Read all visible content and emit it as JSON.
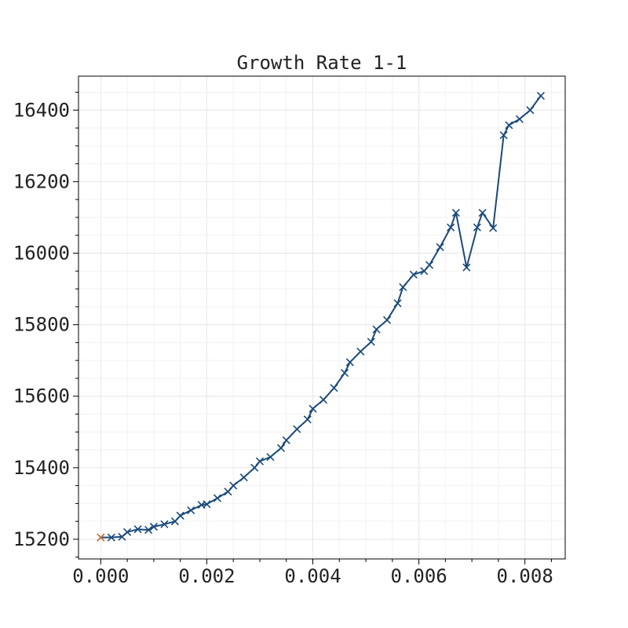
{
  "chart_data": {
    "type": "line",
    "title": "Growth Rate 1-1",
    "xlabel": "",
    "ylabel": "",
    "xlim": [
      -0.00042,
      0.00876
    ],
    "ylim": [
      15145,
      16495
    ],
    "xticks": [
      0.0,
      0.002,
      0.004,
      0.006,
      0.008
    ],
    "xtick_labels": [
      "0.000",
      "0.002",
      "0.004",
      "0.006",
      "0.008"
    ],
    "yticks": [
      15200,
      15400,
      15600,
      15800,
      16000,
      16200,
      16400
    ],
    "ytick_labels": [
      "15200",
      "15400",
      "15600",
      "15800",
      "16000",
      "16200",
      "16400"
    ],
    "grid": true,
    "legend": "none",
    "series": [
      {
        "color": "#1a4a7a",
        "marker": "x",
        "x": [
          0.0,
          0.0002,
          0.0004,
          0.0005,
          0.0007,
          0.0009,
          0.001,
          0.0012,
          0.0014,
          0.0015,
          0.0017,
          0.0019,
          0.002,
          0.0022,
          0.0024,
          0.0025,
          0.0027,
          0.0029,
          0.003,
          0.0032,
          0.0034,
          0.0035,
          0.0037,
          0.0039,
          0.004,
          0.0042,
          0.0044,
          0.0046,
          0.0047,
          0.0049,
          0.0051,
          0.0052,
          0.0054,
          0.0056,
          0.0057,
          0.0059,
          0.0061,
          0.0062,
          0.0064,
          0.0066,
          0.0067,
          0.0069,
          0.0071,
          0.0072,
          0.0074,
          0.0076,
          0.0077,
          0.0079,
          0.0081,
          0.0083
        ],
        "y": [
          15205,
          15205,
          15207,
          15220,
          15228,
          15226,
          15235,
          15242,
          15250,
          15266,
          15281,
          15296,
          15298,
          15315,
          15333,
          15350,
          15373,
          15400,
          15418,
          15430,
          15455,
          15477,
          15508,
          15535,
          15565,
          15590,
          15623,
          15665,
          15695,
          15725,
          15752,
          15787,
          15813,
          15860,
          15905,
          15940,
          15950,
          15967,
          16017,
          16072,
          16113,
          15960,
          16072,
          16113,
          16070,
          16330,
          16358,
          16375,
          16400,
          16440
        ]
      },
      {
        "color": "#c87a3c",
        "marker": "x",
        "x": [
          0.0
        ],
        "y": [
          15205
        ]
      }
    ]
  }
}
